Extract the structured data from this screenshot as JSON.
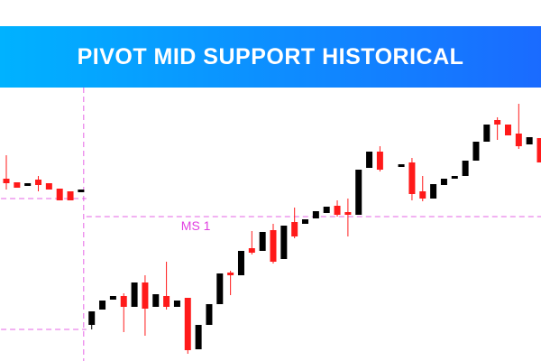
{
  "chart_data": {
    "type": "candlestick",
    "title": "PIVOT MID SUPPORT HISTORICAL",
    "up_color": "#000000",
    "down_color": "#ff1a1a",
    "level_color": "#e040e0",
    "ylim": [
      0,
      303
    ],
    "series": [
      {
        "open": [
          202,
          198,
          194,
          201,
          197,
          191,
          188,
          187,
          40,
          57,
          68,
          72,
          60,
          87,
          60,
          72,
          60,
          70,
          13,
          40,
          63,
          98,
          95,
          125,
          122,
          145,
          113,
          154,
          152,
          158,
          164,
          172,
          165,
          162,
          214,
          232,
          null,
          215,
          220,
          188,
          180,
          195,
          202,
          205,
          222,
          243,
          267,
          262,
          252,
          240,
          247
        ],
        "high": [
          228,
          198,
          197,
          205,
          197,
          191,
          188,
          190,
          55,
          67,
          72,
          75,
          87,
          95,
          74,
          110,
          67,
          70,
          40,
          63,
          97,
          100,
          122,
          144,
          143,
          152,
          150,
          170,
          157,
          166,
          171,
          178,
          180,
          212,
          232,
          238,
          null,
          218,
          225,
          205,
          196,
          202,
          205,
          222,
          243,
          262,
          270,
          262,
          285,
          248,
          247
        ],
        "low": [
          190,
          192,
          194,
          188,
          190,
          178,
          178,
          187,
          35,
          57,
          68,
          32,
          60,
          28,
          60,
          57,
          60,
          8,
          13,
          40,
          63,
          73,
          95,
          118,
          122,
          108,
          113,
          136,
          152,
          158,
          164,
          160,
          138,
          162,
          214,
          210,
          null,
          215,
          178,
          177,
          180,
          195,
          202,
          205,
          222,
          243,
          245,
          250,
          235,
          240,
          220
        ],
        "close": [
          197,
          192,
          197,
          195,
          190,
          178,
          178,
          190,
          55,
          67,
          72,
          60,
          87,
          58,
          74,
          60,
          67,
          12,
          40,
          63,
          97,
          95,
          122,
          120,
          143,
          110,
          150,
          138,
          157,
          166,
          171,
          162,
          162,
          212,
          232,
          212,
          null,
          218,
          185,
          180,
          196,
          202,
          205,
          222,
          243,
          262,
          262,
          250,
          238,
          248,
          220
        ]
      }
    ],
    "levels": [
      {
        "value": 180,
        "from": 0,
        "to": 7
      },
      {
        "value": 160,
        "from": 8,
        "to": 50,
        "label": "MS 1"
      },
      {
        "value": 35,
        "from": 0,
        "to": 7
      }
    ]
  }
}
